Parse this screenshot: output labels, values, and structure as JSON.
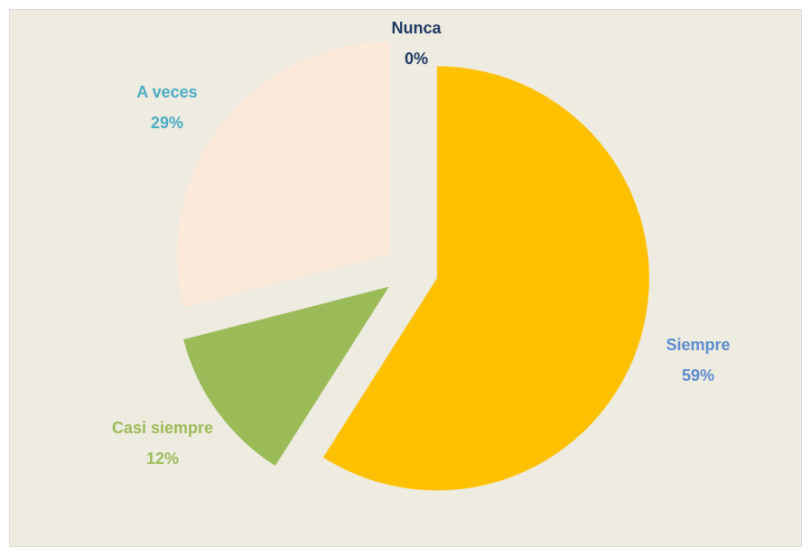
{
  "chart_data": {
    "type": "pie",
    "categories": [
      "Siempre",
      "Casi siempre",
      "A veces",
      "Nunca"
    ],
    "values": [
      59,
      12,
      29,
      0
    ],
    "value_labels": [
      "59%",
      "12%",
      "29%",
      "0%"
    ],
    "colors": [
      "#FFC000",
      "#9BBB59",
      "#FDE9D9",
      "#4F81BD"
    ],
    "label_colors": [
      "#5B8BD0",
      "#9BBB59",
      "#4BACC6",
      "#1F3864"
    ],
    "exploded": true
  }
}
